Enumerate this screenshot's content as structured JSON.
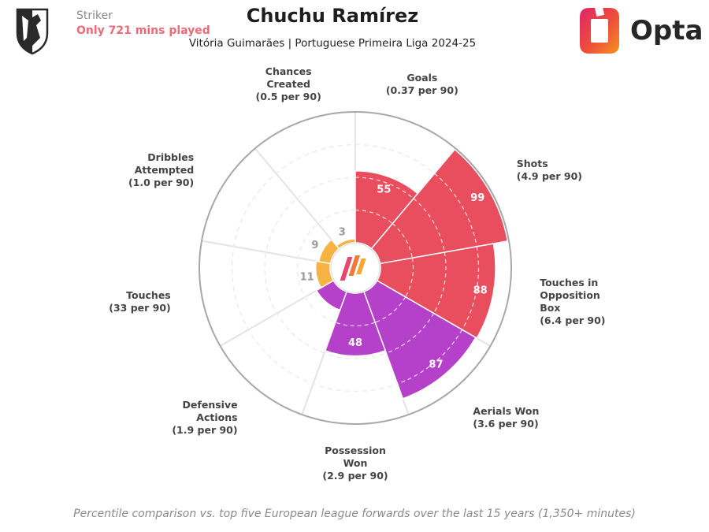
{
  "header": {
    "position": "Striker",
    "minutes_note": "Only 721 mins played",
    "player_name": "Chuchu Ramírez",
    "team_league_season": "Vitória Guimarães | Portuguese Primeira Liga 2024-25",
    "brand": "Opta"
  },
  "chart_data": {
    "type": "polar-bar",
    "title": "",
    "range": [
      0,
      100
    ],
    "grid": true,
    "legend": "none",
    "categories": [
      {
        "name": "Goals",
        "per90": "(0.37 per 90)",
        "value": 55,
        "color": "#e84e5d"
      },
      {
        "name": "Shots",
        "per90": "(4.9 per 90)",
        "value": 99,
        "color": "#e84e5d"
      },
      {
        "name": "Touches in Opposition Box",
        "per90": "(6.4 per 90)",
        "value": 88,
        "color": "#e84e5d"
      },
      {
        "name": "Aerials Won",
        "per90": "(3.6 per 90)",
        "value": 87,
        "color": "#b540c9"
      },
      {
        "name": "Possession Won",
        "per90": "(2.9 per 90)",
        "value": 48,
        "color": "#b540c9"
      },
      {
        "name": "Defensive Actions",
        "per90": "(1.9 per 90)",
        "value": 15,
        "color": "#b540c9"
      },
      {
        "name": "Touches",
        "per90": "(33 per 90)",
        "value": 11,
        "color": "#f7b244"
      },
      {
        "name": "Dribbles Attempted",
        "per90": "(1.0 per 90)",
        "value": 9,
        "color": "#f7b244"
      },
      {
        "name": "Chances Created",
        "per90": "(0.5 per 90)",
        "value": 3,
        "color": "#f7b244"
      }
    ]
  },
  "footer": "Percentile comparison vs. top five European league forwards over the last 15 years (1,350+ minutes)"
}
